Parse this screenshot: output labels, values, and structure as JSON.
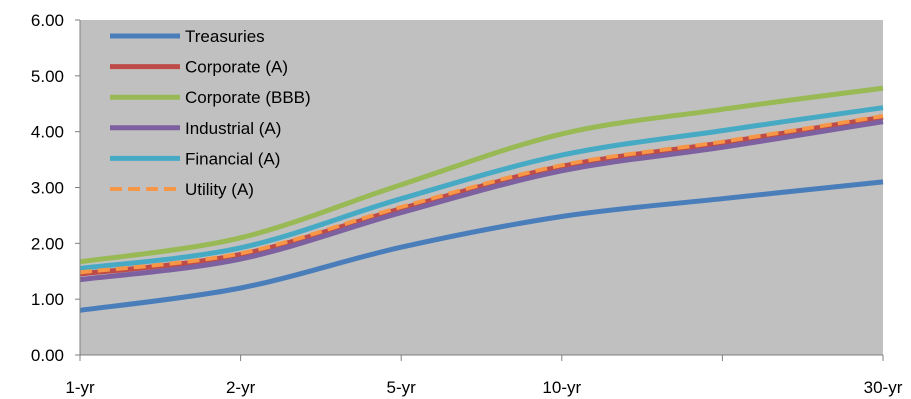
{
  "chart_data": {
    "type": "line",
    "title": "",
    "xlabel": "",
    "ylabel": "",
    "categories": [
      "1-yr",
      "2-yr",
      "5-yr",
      "10-yr",
      "",
      "30-yr"
    ],
    "x": [
      1,
      2,
      5,
      10,
      20,
      30
    ],
    "x_ticks": [
      {
        "x": 1,
        "label": "1-yr"
      },
      {
        "x": 2,
        "label": "2-yr"
      },
      {
        "x": 5,
        "label": "5-yr"
      },
      {
        "x": 10,
        "label": "10-yr"
      },
      {
        "x": 20,
        "label": ""
      },
      {
        "x": 30,
        "label": "30-yr"
      }
    ],
    "ylim": [
      0,
      6
    ],
    "yticks": [
      0,
      1,
      2,
      3,
      4,
      5,
      6
    ],
    "ytick_labels": [
      "0.00",
      "1.00",
      "2.00",
      "3.00",
      "4.00",
      "5.00",
      "6.00"
    ],
    "grid": false,
    "plot_background": "#c0c0c0",
    "legend_position": "top-left",
    "series": [
      {
        "name": "Treasuries",
        "color": "#4a7ebb",
        "dashed": false,
        "values": [
          0.8,
          1.2,
          1.93,
          2.48,
          2.8,
          3.1
        ]
      },
      {
        "name": "Corporate (A)",
        "color": "#be4b48",
        "dashed": false,
        "values": [
          1.45,
          1.8,
          2.62,
          3.38,
          3.8,
          4.26
        ]
      },
      {
        "name": "Corporate (BBB)",
        "color": "#98b954",
        "dashed": false,
        "values": [
          1.67,
          2.1,
          3.05,
          3.96,
          4.4,
          4.78
        ]
      },
      {
        "name": "Industrial (A)",
        "color": "#7d60a0",
        "dashed": false,
        "values": [
          1.35,
          1.72,
          2.55,
          3.3,
          3.72,
          4.18
        ]
      },
      {
        "name": "Financial (A)",
        "color": "#46aac5",
        "dashed": false,
        "values": [
          1.55,
          1.92,
          2.8,
          3.58,
          4.02,
          4.43
        ]
      },
      {
        "name": "Utility (A)",
        "color": "#f79646",
        "dashed": true,
        "values": [
          1.48,
          1.82,
          2.65,
          3.4,
          3.82,
          4.28
        ]
      }
    ]
  }
}
